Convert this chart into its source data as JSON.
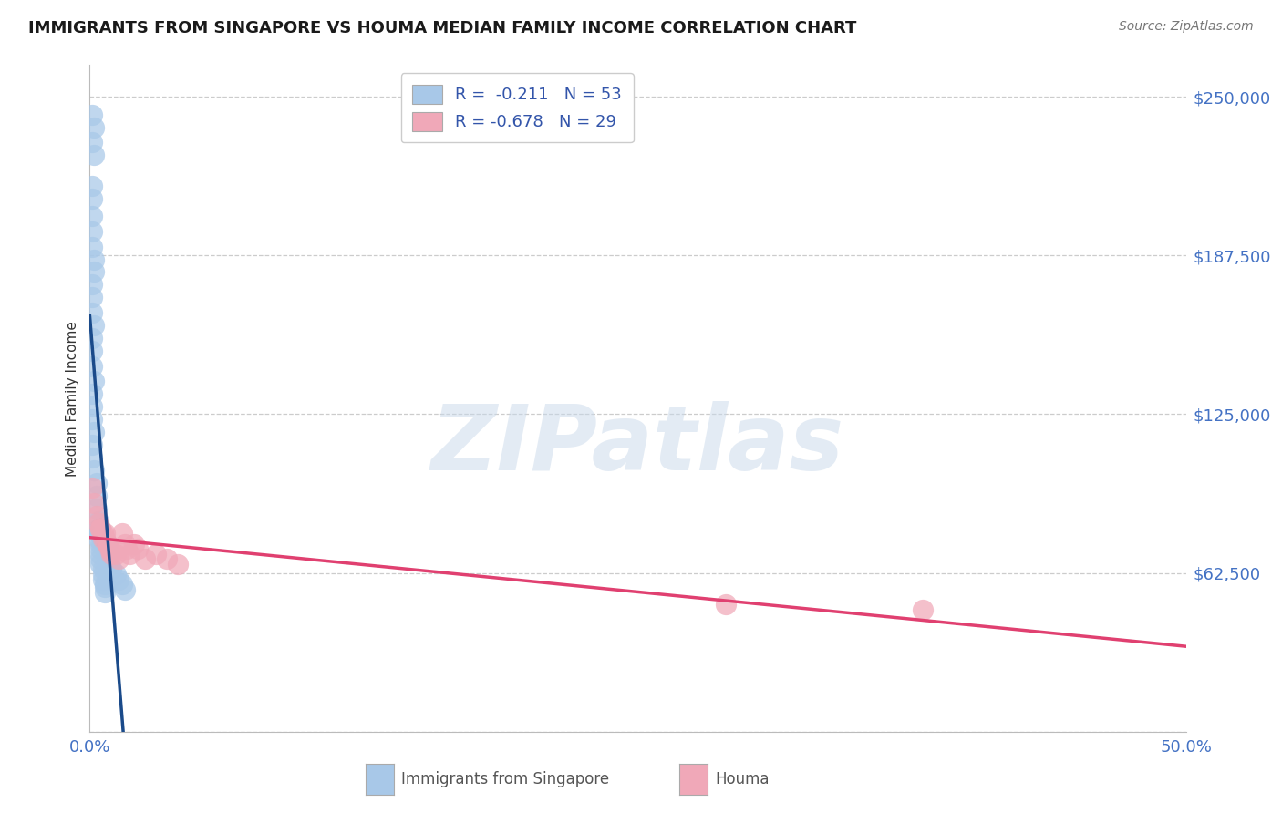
{
  "title": "IMMIGRANTS FROM SINGAPORE VS HOUMA MEDIAN FAMILY INCOME CORRELATION CHART",
  "source": "Source: ZipAtlas.com",
  "ylabel": "Median Family Income",
  "xlim": [
    0.0,
    0.5
  ],
  "ylim": [
    0,
    262500
  ],
  "yticks": [
    0,
    62500,
    125000,
    187500,
    250000
  ],
  "ytick_labels": [
    "",
    "$62,500",
    "$125,000",
    "$187,500",
    "$250,000"
  ],
  "xticks": [
    0.0,
    0.1,
    0.2,
    0.3,
    0.4,
    0.5
  ],
  "xtick_labels": [
    "0.0%",
    "",
    "",
    "",
    "",
    "50.0%"
  ],
  "blue_R": -0.211,
  "blue_N": 53,
  "pink_R": -0.678,
  "pink_N": 29,
  "blue_color": "#a8c8e8",
  "pink_color": "#f0a8b8",
  "blue_line_color": "#1a4a8a",
  "pink_line_color": "#e04070",
  "watermark": "ZIPatlas",
  "blue_scatter_x": [
    0.001,
    0.002,
    0.001,
    0.002,
    0.001,
    0.001,
    0.001,
    0.001,
    0.001,
    0.002,
    0.002,
    0.001,
    0.001,
    0.001,
    0.002,
    0.001,
    0.001,
    0.001,
    0.002,
    0.001,
    0.001,
    0.001,
    0.002,
    0.001,
    0.001,
    0.002,
    0.003,
    0.003,
    0.003,
    0.004,
    0.004,
    0.004,
    0.004,
    0.005,
    0.005,
    0.005,
    0.005,
    0.005,
    0.006,
    0.006,
    0.006,
    0.007,
    0.007,
    0.007,
    0.008,
    0.008,
    0.009,
    0.009,
    0.01,
    0.012,
    0.013,
    0.015,
    0.016
  ],
  "blue_scatter_y": [
    243000,
    238000,
    232000,
    227000,
    215000,
    210000,
    203000,
    197000,
    191000,
    186000,
    181000,
    176000,
    171000,
    165000,
    160000,
    155000,
    150000,
    144000,
    138000,
    133000,
    128000,
    123000,
    118000,
    113000,
    108000,
    103000,
    98000,
    93000,
    88000,
    83000,
    80000,
    78000,
    76000,
    74000,
    72000,
    70000,
    68000,
    66000,
    64000,
    62000,
    60000,
    58000,
    57000,
    55000,
    74000,
    72000,
    70000,
    66000,
    64000,
    62000,
    60000,
    58000,
    56000
  ],
  "pink_scatter_x": [
    0.001,
    0.002,
    0.003,
    0.004,
    0.005,
    0.006,
    0.006,
    0.007,
    0.008,
    0.008,
    0.009,
    0.01,
    0.01,
    0.012,
    0.013,
    0.015,
    0.016,
    0.017,
    0.018,
    0.02,
    0.022,
    0.025,
    0.03,
    0.035,
    0.04,
    0.29,
    0.38,
    0.005,
    0.007
  ],
  "pink_scatter_y": [
    96000,
    90000,
    85000,
    82000,
    80000,
    78000,
    76000,
    76000,
    74000,
    74000,
    72000,
    71000,
    70000,
    70000,
    68000,
    78000,
    74000,
    72000,
    70000,
    74000,
    72000,
    68000,
    70000,
    68000,
    66000,
    50000,
    48000,
    80000,
    78000
  ],
  "blue_line_solid_xmax": 0.018,
  "blue_line_dash_xmax": 0.28,
  "pink_line_xmin": 0.0,
  "pink_line_xmax": 0.5
}
